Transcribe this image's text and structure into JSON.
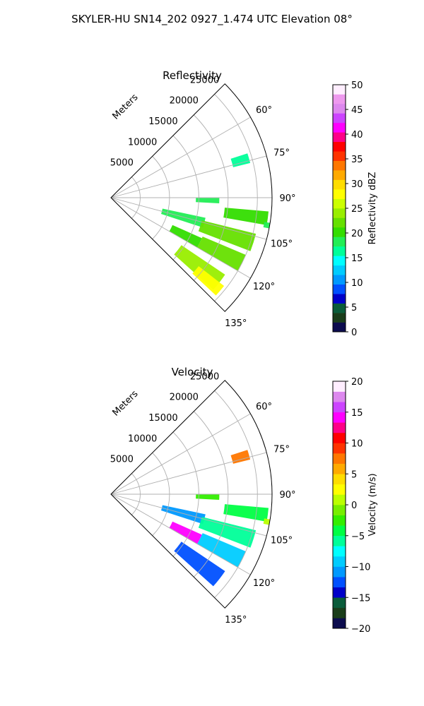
{
  "figure": {
    "suptitle": "SKYLER-HU  SN14_202  0927_1.474 UTC Elevation 08°"
  },
  "chart_data": [
    {
      "type": "heatmap",
      "projection": "polar-sector",
      "title": "Reflectivity",
      "radial_label": "Meters",
      "radial_ticks": [
        5000,
        10000,
        15000,
        20000,
        25000
      ],
      "radial_tick_labels": [
        "5000",
        "10000",
        "15000",
        "20000",
        "25000"
      ],
      "rmax": 27500,
      "azimuth_range_deg": [
        45,
        135
      ],
      "azimuth_ticks": [
        60,
        75,
        90,
        105,
        120,
        135
      ],
      "azimuth_tick_labels": [
        "60°",
        "75°",
        "90°",
        "105°",
        "120°",
        "135°"
      ],
      "grid": true,
      "colorbar": {
        "label": "Reflectivity dBZ",
        "vmin": 0,
        "vmax": 50,
        "ticks": [
          0,
          5,
          10,
          15,
          20,
          25,
          30,
          35,
          40,
          45,
          50
        ],
        "tick_labels": [
          "0",
          "5",
          "10",
          "15",
          "20",
          "25",
          "30",
          "35",
          "40",
          "45",
          "50"
        ]
      },
      "echoes": [
        {
          "az": [
            72,
            76
          ],
          "r": [
            21500,
            24500
          ],
          "value": 17
        },
        {
          "az": [
            90,
            93
          ],
          "r": [
            14500,
            18500
          ],
          "value": 18
        },
        {
          "az": [
            95,
            100
          ],
          "r": [
            19500,
            27000
          ],
          "value": 20
        },
        {
          "az": [
            102,
            108
          ],
          "r": [
            9000,
            16500
          ],
          "value": 18
        },
        {
          "az": [
            104,
            111
          ],
          "r": [
            16000,
            25500
          ],
          "value": 22
        },
        {
          "az": [
            114,
            120
          ],
          "r": [
            11500,
            17000
          ],
          "value": 21
        },
        {
          "az": [
            113,
            120
          ],
          "r": [
            17000,
            25000
          ],
          "value": 23
        },
        {
          "az": [
            124,
            132
          ],
          "r": [
            14500,
            23500
          ],
          "value": 24
        },
        {
          "az": [
            128,
            133
          ],
          "r": [
            19000,
            24500
          ],
          "value": 27
        },
        {
          "az": [
            99,
            101
          ],
          "r": [
            26500,
            27500
          ],
          "value": 19
        }
      ]
    },
    {
      "type": "heatmap",
      "projection": "polar-sector",
      "title": "Velocity",
      "radial_label": "Meters",
      "radial_ticks": [
        5000,
        10000,
        15000,
        20000,
        25000
      ],
      "radial_tick_labels": [
        "5000",
        "10000",
        "15000",
        "20000",
        "25000"
      ],
      "rmax": 27500,
      "azimuth_range_deg": [
        45,
        135
      ],
      "azimuth_ticks": [
        60,
        75,
        90,
        105,
        120,
        135
      ],
      "azimuth_tick_labels": [
        "60°",
        "75°",
        "90°",
        "105°",
        "120°",
        "135°"
      ],
      "grid": true,
      "colorbar": {
        "label": "Velocity (m/s)",
        "vmin": -20,
        "vmax": 20,
        "ticks": [
          -20,
          -15,
          -10,
          -5,
          0,
          5,
          10,
          15,
          20
        ],
        "tick_labels": [
          "−20",
          "−15",
          "−10",
          "−5",
          "0",
          "5",
          "10",
          "15",
          "20"
        ]
      },
      "echoes": [
        {
          "az": [
            72,
            76
          ],
          "r": [
            21500,
            24500
          ],
          "value": 8
        },
        {
          "az": [
            90,
            93
          ],
          "r": [
            14500,
            18500
          ],
          "value": -3
        },
        {
          "az": [
            95,
            100
          ],
          "r": [
            19500,
            27000
          ],
          "value": -4
        },
        {
          "az": [
            102,
            108
          ],
          "r": [
            9000,
            16500
          ],
          "value": -11
        },
        {
          "az": [
            104,
            111
          ],
          "r": [
            16000,
            25500
          ],
          "value": -6
        },
        {
          "az": [
            114,
            120
          ],
          "r": [
            11500,
            17000
          ],
          "value": 14
        },
        {
          "az": [
            113,
            120
          ],
          "r": [
            17000,
            25000
          ],
          "value": -9
        },
        {
          "az": [
            124,
            132
          ],
          "r": [
            14500,
            23500
          ],
          "value": -12
        },
        {
          "az": [
            99,
            101
          ],
          "r": [
            26500,
            27500
          ],
          "value": 1
        }
      ]
    }
  ]
}
